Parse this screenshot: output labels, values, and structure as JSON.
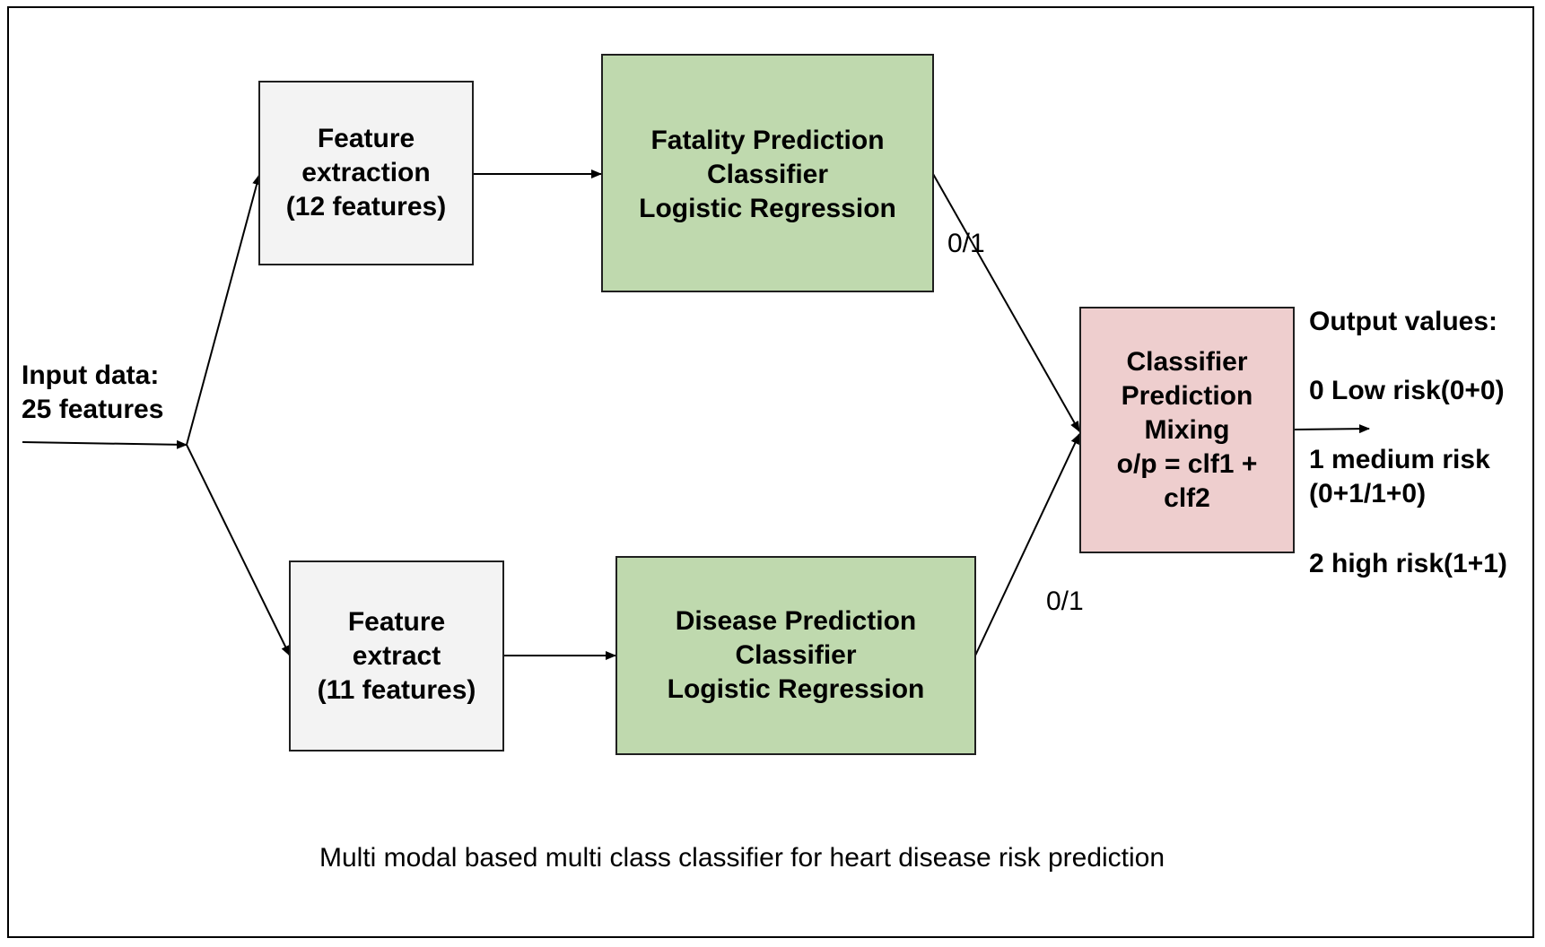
{
  "input": {
    "line1": "Input data:",
    "line2": "25 features"
  },
  "feature_top": {
    "line1": "Feature",
    "line2": "extraction",
    "line3": "(12 features)"
  },
  "feature_bottom": {
    "line1": "Feature",
    "line2": "extract",
    "line3": "(11 features)"
  },
  "fatality": {
    "line1": "Fatality Prediction",
    "line2": "Classifier",
    "line3": "Logistic Regression"
  },
  "disease": {
    "line1": "Disease Prediction",
    "line2": "Classifier",
    "line3": "Logistic Regression"
  },
  "mixing": {
    "line1": "Classifier",
    "line2": "Prediction",
    "line3": "Mixing",
    "line4": "o/p = clf1 +",
    "line5": "clf2"
  },
  "edge_labels": {
    "top": "0/1",
    "bottom": "0/1"
  },
  "output": {
    "title": "Output values:",
    "low": "0 Low risk(0+0)",
    "medium_1": "1 medium risk",
    "medium_2": "(0+1/1+0)",
    "high": "2 high risk(1+1)"
  },
  "caption": "Multi modal based multi class classifier for heart disease risk prediction",
  "colors": {
    "grey_box": "#f3f3f3",
    "green_box": "#bfd9ae",
    "pink_box": "#eecece"
  }
}
